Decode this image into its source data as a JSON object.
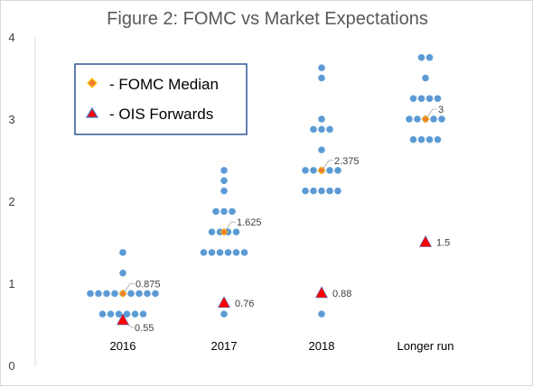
{
  "chart_data": {
    "type": "scatter",
    "title": "Figure 2: FOMC vs Market Expectations",
    "xlabel": "",
    "ylabel": "",
    "ylim": [
      0,
      4
    ],
    "yticks": [
      "0",
      "1",
      "2",
      "3",
      "4"
    ],
    "grid": false,
    "legend_position": "top-left",
    "categories": [
      "2016",
      "2017",
      "2018",
      "Longer run"
    ],
    "dots": {
      "name": "",
      "color": "#5b9bd5",
      "points": [
        {
          "category": "2016",
          "y": 1.375,
          "count": 1
        },
        {
          "category": "2016",
          "y": 1.125,
          "count": 1
        },
        {
          "category": "2016",
          "y": 0.875,
          "count": 9
        },
        {
          "category": "2016",
          "y": 0.625,
          "count": 6
        },
        {
          "category": "2017",
          "y": 2.375,
          "count": 1
        },
        {
          "category": "2017",
          "y": 2.25,
          "count": 1
        },
        {
          "category": "2017",
          "y": 2.125,
          "count": 1
        },
        {
          "category": "2017",
          "y": 1.875,
          "count": 3
        },
        {
          "category": "2017",
          "y": 1.625,
          "count": 4
        },
        {
          "category": "2017",
          "y": 1.375,
          "count": 6
        },
        {
          "category": "2017",
          "y": 0.625,
          "count": 1
        },
        {
          "category": "2018",
          "y": 3.625,
          "count": 1
        },
        {
          "category": "2018",
          "y": 3.5,
          "count": 1
        },
        {
          "category": "2018",
          "y": 3.0,
          "count": 1
        },
        {
          "category": "2018",
          "y": 2.875,
          "count": 3
        },
        {
          "category": "2018",
          "y": 2.625,
          "count": 1
        },
        {
          "category": "2018",
          "y": 2.375,
          "count": 5
        },
        {
          "category": "2018",
          "y": 2.125,
          "count": 5
        },
        {
          "category": "2018",
          "y": 0.625,
          "count": 1
        },
        {
          "category": "Longer run",
          "y": 3.75,
          "count": 2
        },
        {
          "category": "Longer run",
          "y": 3.5,
          "count": 1
        },
        {
          "category": "Longer run",
          "y": 3.25,
          "count": 4
        },
        {
          "category": "Longer run",
          "y": 3.0,
          "count": 5
        },
        {
          "category": "Longer run",
          "y": 2.75,
          "count": 4
        }
      ]
    },
    "series": [
      {
        "name": "- FOMC Median",
        "marker": "diamond",
        "color": "#ed7d31",
        "border": "#ffc000",
        "values": [
          0.875,
          1.625,
          2.375,
          3
        ],
        "labels": [
          "0.875",
          "1.625",
          "2.375",
          "3"
        ]
      },
      {
        "name": "- OIS Forwards",
        "marker": "triangle",
        "color": "#ff0000",
        "border": "#4472c4",
        "values": [
          0.55,
          0.76,
          0.88,
          1.5
        ],
        "labels": [
          "0.55",
          "0.76",
          "0.88",
          "1.5"
        ]
      }
    ]
  }
}
